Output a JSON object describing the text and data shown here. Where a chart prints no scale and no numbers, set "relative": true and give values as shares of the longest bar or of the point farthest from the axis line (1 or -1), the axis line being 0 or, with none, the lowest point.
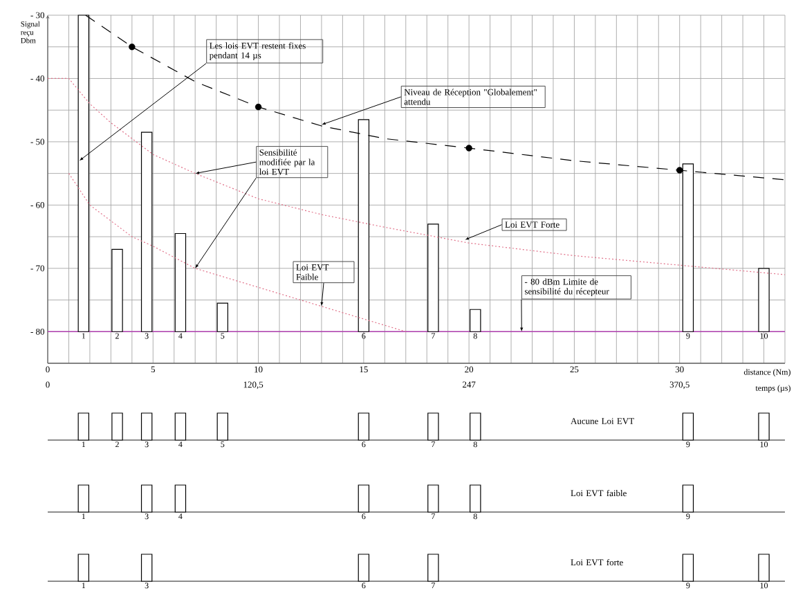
{
  "chart_data": [
    {
      "type": "bar",
      "xlabel": "distance (Nm)",
      "x2label": "temps (µs)",
      "ylabel": "Signal reçu Dbm",
      "xlim": [
        0,
        35
      ],
      "ylim": [
        -85,
        -30
      ],
      "x2lim": [
        0,
        432.25
      ],
      "grid": true,
      "xticks": [
        0,
        {
          "value": 1,
          "label": null
        },
        {
          "value": 2,
          "label": null
        },
        {
          "value": 3,
          "label": null
        },
        {
          "value": 4,
          "label": null
        },
        5,
        {
          "value": 6,
          "label": null
        },
        {
          "value": 7,
          "label": null
        },
        {
          "value": 8,
          "label": null
        },
        {
          "value": 9,
          "label": null
        },
        10,
        {
          "value": 11,
          "label": null
        },
        {
          "value": 12,
          "label": null
        },
        {
          "value": 13,
          "label": null
        },
        {
          "value": 14,
          "label": null
        },
        15,
        {
          "value": 16,
          "label": null
        },
        {
          "value": 17,
          "label": null
        },
        {
          "value": 18,
          "label": null
        },
        {
          "value": 19,
          "label": null
        },
        20,
        {
          "value": 21,
          "label": null
        },
        {
          "value": 22,
          "label": null
        },
        {
          "value": 23,
          "label": null
        },
        {
          "value": 24,
          "label": null
        },
        25,
        {
          "value": 26,
          "label": null
        },
        {
          "value": 27,
          "label": null
        },
        {
          "value": 28,
          "label": null
        },
        {
          "value": 29,
          "label": null
        },
        30,
        {
          "value": 31,
          "label": null
        },
        {
          "value": 32,
          "label": null
        },
        {
          "value": 33,
          "label": null
        },
        {
          "value": 34,
          "label": null
        },
        {
          "value": 35,
          "label": null
        }
      ],
      "x2ticks": [
        0,
        {
          "value": 120.5,
          "label": "120,5"
        },
        247,
        {
          "value": 370.5,
          "label": "370,5"
        }
      ],
      "yticks": [
        {
          "value": -30,
          "label": "- 30"
        },
        {
          "value": -35,
          "label": null
        },
        {
          "value": -40,
          "label": "- 40"
        },
        {
          "value": -45,
          "label": null
        },
        {
          "value": -50,
          "label": "- 50"
        },
        {
          "value": -55,
          "label": null
        },
        {
          "value": -60,
          "label": "- 60"
        },
        {
          "value": -65,
          "label": null
        },
        {
          "value": -70,
          "label": "- 70"
        },
        {
          "value": -75,
          "label": null
        },
        {
          "value": -80,
          "label": "- 80"
        },
        {
          "value": -85,
          "label": null
        }
      ],
      "series": [
        {
          "type": "bar",
          "color": "#000000",
          "x": [
            1.7,
            3.3,
            4.7,
            6.3,
            8.3,
            15,
            18.3,
            20.3,
            30.4,
            34
          ],
          "base": [
            -80,
            -80,
            -80,
            -80,
            -80,
            -80,
            -80,
            -80,
            -80,
            -80
          ],
          "values": [
            50,
            13,
            31.5,
            15.5,
            4.5,
            33.5,
            17,
            3.5,
            26.5,
            10
          ]
        },
        {
          "type": "line",
          "color": "#000000",
          "line_style": "dashed",
          "x": [
            1.8,
            4,
            7,
            10,
            13,
            16,
            20,
            25,
            30,
            35
          ],
          "values": [
            -30,
            -35,
            -40.5,
            -44.5,
            -47.5,
            -49.5,
            -51,
            -53,
            -54.5,
            -56
          ]
        },
        {
          "type": "scatter",
          "color": "#000000",
          "marker": "circle",
          "x": [
            4,
            10,
            20,
            30
          ],
          "values": [
            -35,
            -44.5,
            -51,
            -54.5
          ]
        },
        {
          "type": "line",
          "color": "#e07088",
          "line_style": "dotted",
          "x": [
            0,
            1,
            2,
            3,
            5,
            7,
            10,
            13,
            16,
            20,
            25,
            30,
            35
          ],
          "values": [
            -40,
            -40,
            -44,
            -47,
            -52,
            -55,
            -59,
            -61.5,
            -63.5,
            -66,
            -68,
            -69.5,
            -71
          ]
        },
        {
          "type": "line",
          "color": "#e07088",
          "line_style": "dotted",
          "x": [
            1,
            2,
            3,
            4,
            5,
            7,
            10,
            13,
            16,
            17
          ],
          "values": [
            -55,
            -60,
            -62.5,
            -65,
            -66.5,
            -70,
            -73,
            -76,
            -79,
            -80
          ]
        }
      ],
      "ref_lines": [
        {
          "axis": "y",
          "value": -80,
          "label": null,
          "color": "#b040b0"
        }
      ],
      "annotations": [
        {
          "text": "Les lois EVT restent fixes pendant 14 µs",
          "x": 1.5,
          "y": -53
        },
        {
          "text": "Niveau de Réception \"Globalement\" attendu",
          "x": 13,
          "y": -47.3
        },
        {
          "text": "Sensibilité modifiée par la loi EVT",
          "x": 7,
          "y": -55
        },
        {
          "text": "Loi EVT Faible",
          "x": 13,
          "y": -76
        },
        {
          "text": "Loi EVT Forte",
          "x": 19.8,
          "y": -65.5
        },
        {
          "text": "- 80 dBm Limite de sensibilité du récepteur",
          "x": 22.5,
          "y": -80
        },
        {
          "text": "1",
          "x": 1.7,
          "y": -80
        },
        {
          "text": "2",
          "x": 3.3,
          "y": -80
        },
        {
          "text": "3",
          "x": 4.7,
          "y": -80
        },
        {
          "text": "4",
          "x": 6.3,
          "y": -80
        },
        {
          "text": "5",
          "x": 8.3,
          "y": -80
        },
        {
          "text": "6",
          "x": 15,
          "y": -80
        },
        {
          "text": "7",
          "x": 18.3,
          "y": -80
        },
        {
          "text": "8",
          "x": 20.3,
          "y": -80
        },
        {
          "text": "9",
          "x": 30.4,
          "y": -80
        },
        {
          "text": "10",
          "x": 34,
          "y": -80
        }
      ]
    },
    {
      "type": "bar",
      "title": "Aucune Loi EVT",
      "relative": true,
      "xlim": [
        0,
        35
      ],
      "color": "#000000",
      "x": [
        1.7,
        3.3,
        4.7,
        6.3,
        8.3,
        15,
        18.3,
        20.3,
        30.4,
        34
      ],
      "values": [
        1,
        1,
        1,
        1,
        1,
        1,
        1,
        1,
        1,
        1
      ],
      "annotations": [
        {
          "text": "1",
          "x": 1.7,
          "y": 0
        },
        {
          "text": "2",
          "x": 3.3,
          "y": 0
        },
        {
          "text": "3",
          "x": 4.7,
          "y": 0
        },
        {
          "text": "4",
          "x": 6.3,
          "y": 0
        },
        {
          "text": "5",
          "x": 8.3,
          "y": 0
        },
        {
          "text": "6",
          "x": 15,
          "y": 0
        },
        {
          "text": "7",
          "x": 18.3,
          "y": 0
        },
        {
          "text": "8",
          "x": 20.3,
          "y": 0
        },
        {
          "text": "9",
          "x": 30.4,
          "y": 0
        },
        {
          "text": "10",
          "x": 34,
          "y": 0
        }
      ]
    },
    {
      "type": "bar",
      "title": "Loi EVT faible",
      "relative": true,
      "xlim": [
        0,
        35
      ],
      "color": "#000000",
      "x": [
        1.7,
        4.7,
        6.3,
        15,
        18.3,
        20.3,
        30.4
      ],
      "values": [
        1,
        1,
        1,
        1,
        1,
        1,
        1
      ],
      "annotations": [
        {
          "text": "1",
          "x": 1.7,
          "y": 0
        },
        {
          "text": "3",
          "x": 4.7,
          "y": 0
        },
        {
          "text": "4",
          "x": 6.3,
          "y": 0
        },
        {
          "text": "6",
          "x": 15,
          "y": 0
        },
        {
          "text": "7",
          "x": 18.3,
          "y": 0
        },
        {
          "text": "8",
          "x": 20.3,
          "y": 0
        },
        {
          "text": "9",
          "x": 30.4,
          "y": 0
        }
      ]
    },
    {
      "type": "bar",
      "title": "Loi EVT forte",
      "relative": true,
      "xlim": [
        0,
        35
      ],
      "color": "#000000",
      "x": [
        1.7,
        4.7,
        15,
        18.3,
        30.4,
        34
      ],
      "values": [
        1,
        1,
        1,
        1,
        1,
        1
      ],
      "annotations": [
        {
          "text": "1",
          "x": 1.7,
          "y": 0
        },
        {
          "text": "3",
          "x": 4.7,
          "y": 0
        },
        {
          "text": "6",
          "x": 15,
          "y": 0
        },
        {
          "text": "7",
          "x": 18.3,
          "y": 0
        },
        {
          "text": "9",
          "x": 30.4,
          "y": 0
        },
        {
          "text": "10",
          "x": 34,
          "y": 0
        }
      ]
    }
  ]
}
